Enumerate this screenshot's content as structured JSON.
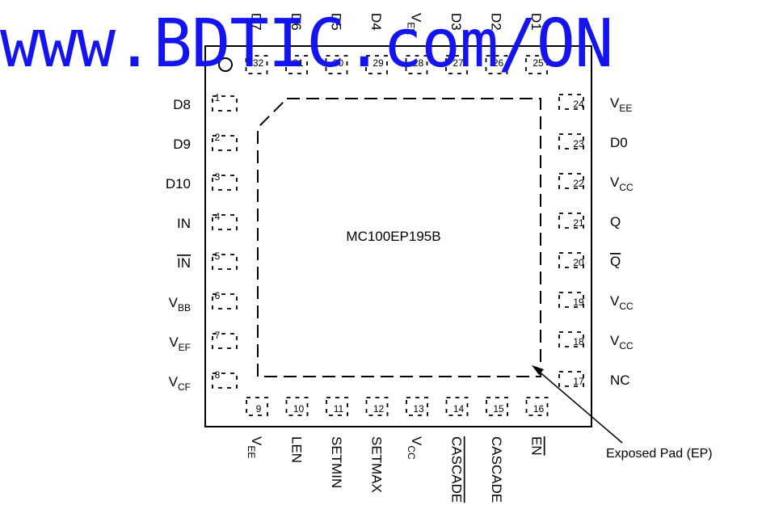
{
  "chip": {
    "part_number": "MC100EP195B",
    "ep_label": "Exposed Pad (EP)"
  },
  "watermark": "www.BDTIC.com/ON",
  "pins": {
    "left": [
      {
        "num": "1",
        "name": "D8",
        "sub": ""
      },
      {
        "num": "2",
        "name": "D9",
        "sub": ""
      },
      {
        "num": "3",
        "name": "D10",
        "sub": ""
      },
      {
        "num": "4",
        "name": "IN",
        "sub": ""
      },
      {
        "num": "5",
        "name": "IN",
        "sub": "",
        "overbar": true
      },
      {
        "num": "6",
        "name": "V",
        "sub": "BB"
      },
      {
        "num": "7",
        "name": "V",
        "sub": "EF"
      },
      {
        "num": "8",
        "name": "V",
        "sub": "CF"
      }
    ],
    "bottom": [
      {
        "num": "9",
        "name": "V",
        "sub": "EE"
      },
      {
        "num": "10",
        "name": "LEN",
        "sub": ""
      },
      {
        "num": "11",
        "name": "SETMIN",
        "sub": ""
      },
      {
        "num": "12",
        "name": "SETMAX",
        "sub": ""
      },
      {
        "num": "13",
        "name": "V",
        "sub": "CC"
      },
      {
        "num": "14",
        "name": "CASCADE",
        "sub": "",
        "overbar": true
      },
      {
        "num": "15",
        "name": "CASCADE",
        "sub": ""
      },
      {
        "num": "16",
        "name": "EN",
        "sub": "",
        "overbar": true
      }
    ],
    "right": [
      {
        "num": "17",
        "name": "NC",
        "sub": ""
      },
      {
        "num": "18",
        "name": "V",
        "sub": "CC"
      },
      {
        "num": "19",
        "name": "V",
        "sub": "CC"
      },
      {
        "num": "20",
        "name": "Q",
        "sub": "",
        "overbar": true
      },
      {
        "num": "21",
        "name": "Q",
        "sub": ""
      },
      {
        "num": "22",
        "name": "V",
        "sub": "CC"
      },
      {
        "num": "23",
        "name": "D0",
        "sub": ""
      },
      {
        "num": "24",
        "name": "V",
        "sub": "EE"
      }
    ],
    "top": [
      {
        "num": "25",
        "name": "D1",
        "sub": ""
      },
      {
        "num": "26",
        "name": "D2",
        "sub": ""
      },
      {
        "num": "27",
        "name": "D3",
        "sub": ""
      },
      {
        "num": "28",
        "name": "V",
        "sub": "EE"
      },
      {
        "num": "29",
        "name": "D4",
        "sub": ""
      },
      {
        "num": "30",
        "name": "D5",
        "sub": ""
      },
      {
        "num": "31",
        "name": "D6",
        "sub": ""
      },
      {
        "num": "32",
        "name": "D7",
        "sub": ""
      }
    ]
  }
}
